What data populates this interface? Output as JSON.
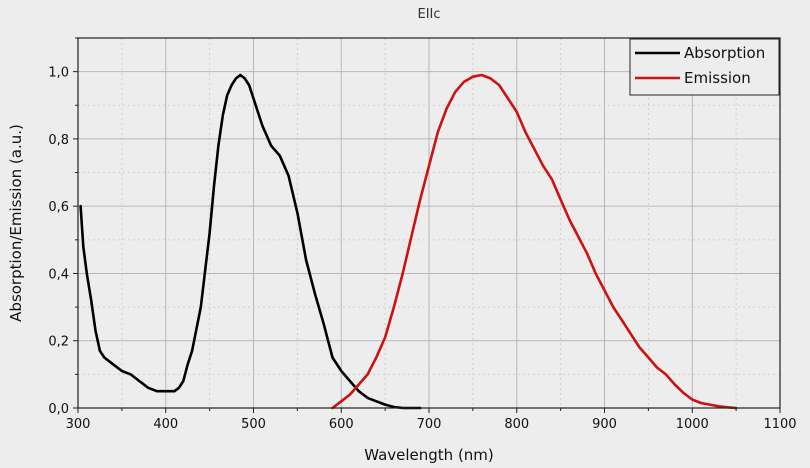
{
  "chart_data": {
    "type": "line",
    "title": "EIIc",
    "xlabel": "Wavelength (nm)",
    "ylabel": "Absorption/Emission (a.u.)",
    "xlim": [
      300,
      1100
    ],
    "ylim": [
      0,
      1.1
    ],
    "x_ticks": [
      300,
      400,
      500,
      600,
      700,
      800,
      900,
      1000,
      1100
    ],
    "y_ticks": [
      0,
      0.2,
      0.4,
      0.6,
      0.8,
      1.0
    ],
    "y_tick_labels": [
      "0,0",
      "0,2",
      "0,4",
      "0,6",
      "0,8",
      "1,0"
    ],
    "grid": true,
    "legend_position": "top-right",
    "colors": {
      "background": "#ededed",
      "absorption": "#000000",
      "emission": "#cc1111",
      "grid": "#bdbdbd"
    },
    "series": [
      {
        "name": "Absorption",
        "color": "#000000",
        "x": [
          303,
          306,
          310,
          315,
          320,
          325,
          330,
          340,
          350,
          360,
          370,
          380,
          390,
          400,
          410,
          415,
          420,
          425,
          430,
          440,
          450,
          455,
          460,
          465,
          470,
          475,
          480,
          485,
          490,
          495,
          500,
          505,
          510,
          520,
          530,
          540,
          550,
          560,
          570,
          580,
          590,
          600,
          610,
          620,
          630,
          640,
          650,
          660,
          670,
          680,
          690
        ],
        "y": [
          0.6,
          0.48,
          0.4,
          0.32,
          0.23,
          0.17,
          0.15,
          0.13,
          0.11,
          0.1,
          0.08,
          0.06,
          0.05,
          0.05,
          0.05,
          0.06,
          0.08,
          0.13,
          0.17,
          0.3,
          0.52,
          0.66,
          0.78,
          0.87,
          0.93,
          0.96,
          0.98,
          0.99,
          0.98,
          0.96,
          0.92,
          0.88,
          0.84,
          0.78,
          0.75,
          0.69,
          0.58,
          0.44,
          0.34,
          0.25,
          0.15,
          0.11,
          0.08,
          0.05,
          0.03,
          0.02,
          0.01,
          0.003,
          0.0,
          0.0,
          0.0
        ]
      },
      {
        "name": "Emission",
        "color": "#cc1111",
        "x": [
          590,
          600,
          610,
          620,
          630,
          640,
          650,
          660,
          670,
          680,
          690,
          700,
          710,
          720,
          730,
          740,
          750,
          760,
          770,
          780,
          790,
          800,
          810,
          820,
          830,
          840,
          850,
          860,
          870,
          880,
          890,
          900,
          910,
          920,
          930,
          940,
          950,
          960,
          970,
          980,
          990,
          1000,
          1010,
          1020,
          1030,
          1040,
          1050
        ],
        "y": [
          0.0,
          0.02,
          0.04,
          0.07,
          0.1,
          0.15,
          0.21,
          0.3,
          0.4,
          0.51,
          0.62,
          0.72,
          0.82,
          0.89,
          0.94,
          0.97,
          0.985,
          0.99,
          0.98,
          0.96,
          0.92,
          0.88,
          0.82,
          0.77,
          0.72,
          0.68,
          0.62,
          0.56,
          0.51,
          0.46,
          0.4,
          0.35,
          0.3,
          0.26,
          0.22,
          0.18,
          0.15,
          0.12,
          0.1,
          0.07,
          0.045,
          0.025,
          0.015,
          0.01,
          0.005,
          0.002,
          0.0
        ]
      }
    ]
  }
}
